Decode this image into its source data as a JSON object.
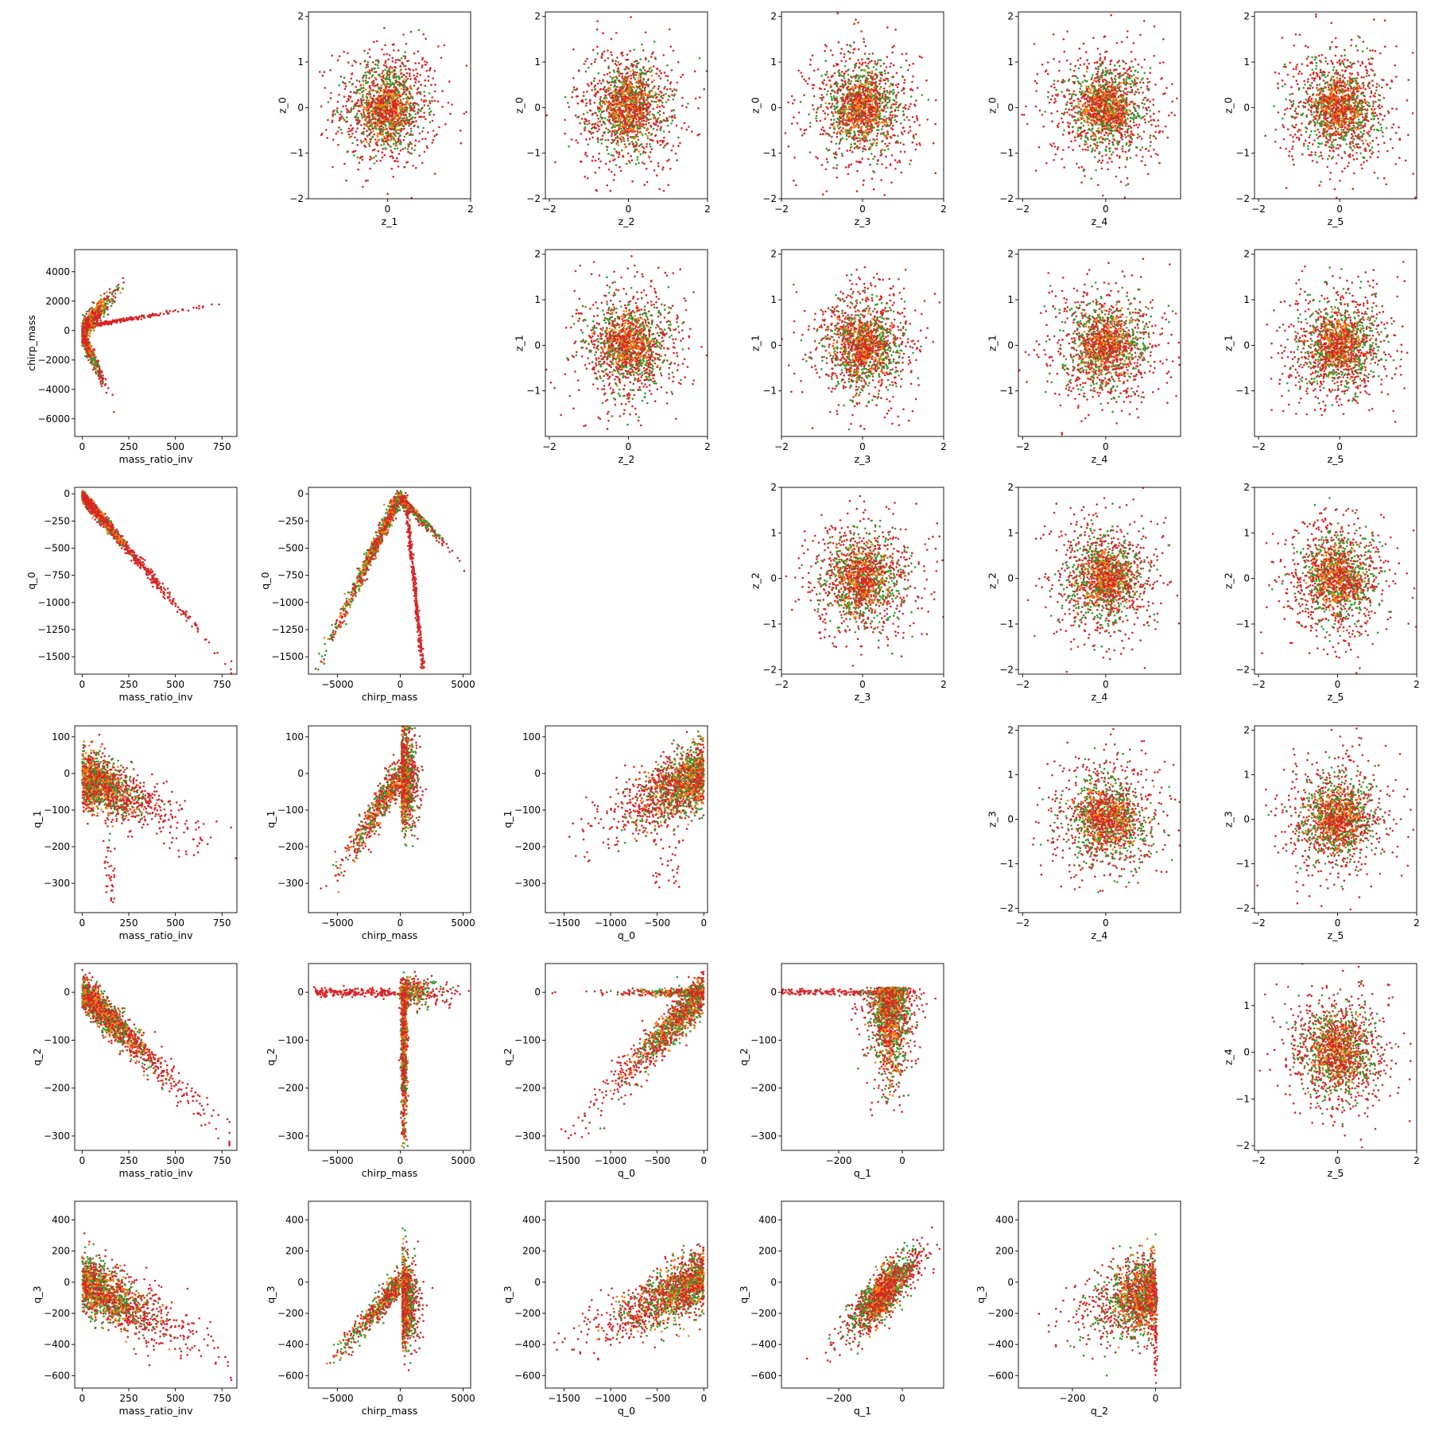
{
  "colors": {
    "green": "#2ca02c",
    "orange": "#ff7f0e",
    "red": "#d62728"
  },
  "chart_data": {
    "type": "scatter",
    "figure": "lower triangle: physical/intermediate variable scatter pairs; upper triangle: latent z_i vs z_j scatter pairs",
    "series": [
      {
        "name": "",
        "color": "#2ca02c"
      },
      {
        "name": "",
        "color": "#ff7f0e"
      },
      {
        "name": "",
        "color": "#d62728"
      }
    ],
    "panels": [
      {
        "row": 0,
        "col": 1,
        "xlabel": "z_1",
        "ylabel": "z_0",
        "xlim": [
          -1.9,
          2.0
        ],
        "ylim": [
          -2.0,
          2.1
        ],
        "xticks": [
          0,
          2
        ],
        "yticks": [
          -2,
          -1,
          0,
          1,
          2
        ],
        "shape": "blob",
        "cx": 0,
        "cy": 0,
        "sx": 0.55,
        "sy": 0.6
      },
      {
        "row": 0,
        "col": 2,
        "xlabel": "z_2",
        "ylabel": "z_0",
        "xlim": [
          -2.1,
          2.0
        ],
        "ylim": [
          -2.0,
          2.1
        ],
        "xticks": [
          -2,
          0,
          2
        ],
        "yticks": [
          -2,
          -1,
          0,
          1,
          2
        ],
        "shape": "blob",
        "cx": 0,
        "cy": 0,
        "sx": 0.6,
        "sy": 0.6
      },
      {
        "row": 0,
        "col": 3,
        "xlabel": "z_3",
        "ylabel": "z_0",
        "xlim": [
          -2.0,
          2.0
        ],
        "ylim": [
          -2.0,
          2.1
        ],
        "xticks": [
          -2,
          0,
          2
        ],
        "yticks": [
          -2,
          -1,
          0,
          1,
          2
        ],
        "shape": "blob",
        "cx": 0,
        "cy": 0,
        "sx": 0.6,
        "sy": 0.6
      },
      {
        "row": 0,
        "col": 4,
        "xlabel": "z_4",
        "ylabel": "z_0",
        "xlim": [
          -2.1,
          1.8
        ],
        "ylim": [
          -2.0,
          2.1
        ],
        "xticks": [
          -2,
          0
        ],
        "yticks": [
          -2,
          -1,
          0,
          1,
          2
        ],
        "shape": "blob",
        "cx": 0,
        "cy": 0,
        "sx": 0.6,
        "sy": 0.6
      },
      {
        "row": 0,
        "col": 5,
        "xlabel": "z_5",
        "ylabel": "z_0",
        "xlim": [
          -2.1,
          1.9
        ],
        "ylim": [
          -2.0,
          2.1
        ],
        "xticks": [
          -2,
          0
        ],
        "yticks": [
          -2,
          -1,
          0,
          1,
          2
        ],
        "shape": "blob",
        "cx": 0,
        "cy": 0,
        "sx": 0.6,
        "sy": 0.6
      },
      {
        "row": 1,
        "col": 0,
        "xlabel": "mass_ratio_inv",
        "ylabel": "chirp_mass",
        "xlim": [
          -40,
          830
        ],
        "ylim": [
          -7200,
          5500
        ],
        "xticks": [
          0,
          250,
          500,
          750
        ],
        "yticks": [
          -6000,
          -4000,
          -2000,
          0,
          2000,
          4000
        ],
        "shape": "mri_chirp"
      },
      {
        "row": 1,
        "col": 2,
        "xlabel": "z_2",
        "ylabel": "z_1",
        "xlim": [
          -2.1,
          2.0
        ],
        "ylim": [
          -2.0,
          2.1
        ],
        "xticks": [
          -2,
          0,
          2
        ],
        "yticks": [
          -1,
          0,
          1,
          2
        ],
        "shape": "blob",
        "cx": 0,
        "cy": 0,
        "sx": 0.6,
        "sy": 0.6
      },
      {
        "row": 1,
        "col": 3,
        "xlabel": "z_3",
        "ylabel": "z_1",
        "xlim": [
          -2.0,
          2.0
        ],
        "ylim": [
          -2.0,
          2.1
        ],
        "xticks": [
          -2,
          0,
          2
        ],
        "yticks": [
          -1,
          0,
          1,
          2
        ],
        "shape": "blob",
        "cx": 0,
        "cy": 0,
        "sx": 0.6,
        "sy": 0.6
      },
      {
        "row": 1,
        "col": 4,
        "xlabel": "z_4",
        "ylabel": "z_1",
        "xlim": [
          -2.1,
          1.8
        ],
        "ylim": [
          -2.0,
          2.1
        ],
        "xticks": [
          -2,
          0
        ],
        "yticks": [
          -1,
          0,
          1,
          2
        ],
        "shape": "blob",
        "cx": 0,
        "cy": 0,
        "sx": 0.6,
        "sy": 0.6
      },
      {
        "row": 1,
        "col": 5,
        "xlabel": "z_5",
        "ylabel": "z_1",
        "xlim": [
          -2.1,
          1.9
        ],
        "ylim": [
          -2.0,
          2.1
        ],
        "xticks": [
          -2,
          0
        ],
        "yticks": [
          -1,
          0,
          1,
          2
        ],
        "shape": "blob",
        "cx": 0,
        "cy": 0,
        "sx": 0.6,
        "sy": 0.6
      },
      {
        "row": 2,
        "col": 0,
        "xlabel": "mass_ratio_inv",
        "ylabel": "q_0",
        "xlim": [
          -40,
          830
        ],
        "ylim": [
          -1660,
          60
        ],
        "xticks": [
          0,
          250,
          500,
          750
        ],
        "yticks": [
          -1500,
          -1250,
          -1000,
          -750,
          -500,
          -250,
          0
        ],
        "shape": "mri_q0"
      },
      {
        "row": 2,
        "col": 1,
        "xlabel": "chirp_mass",
        "ylabel": "q_0",
        "xlim": [
          -7300,
          5600
        ],
        "ylim": [
          -1660,
          60
        ],
        "xticks": [
          -5000,
          0,
          5000
        ],
        "yticks": [
          -1500,
          -1250,
          -1000,
          -750,
          -500,
          -250,
          0
        ],
        "shape": "chirp_q0"
      },
      {
        "row": 2,
        "col": 3,
        "xlabel": "z_3",
        "ylabel": "z_2",
        "xlim": [
          -2.0,
          2.0
        ],
        "ylim": [
          -2.1,
          2.0
        ],
        "xticks": [
          -2,
          0,
          2
        ],
        "yticks": [
          -2,
          -1,
          0,
          1,
          2
        ],
        "shape": "blob",
        "cx": 0,
        "cy": 0,
        "sx": 0.6,
        "sy": 0.6
      },
      {
        "row": 2,
        "col": 4,
        "xlabel": "z_4",
        "ylabel": "z_2",
        "xlim": [
          -2.1,
          1.8
        ],
        "ylim": [
          -2.1,
          2.0
        ],
        "xticks": [
          -2,
          0
        ],
        "yticks": [
          -2,
          -1,
          0,
          1,
          2
        ],
        "shape": "blob",
        "cx": 0,
        "cy": 0,
        "sx": 0.6,
        "sy": 0.6
      },
      {
        "row": 2,
        "col": 5,
        "xlabel": "z_5",
        "ylabel": "z_2",
        "xlim": [
          -2.1,
          2.0
        ],
        "ylim": [
          -2.1,
          2.0
        ],
        "xticks": [
          -2,
          0,
          2
        ],
        "yticks": [
          -2,
          -1,
          0,
          1,
          2
        ],
        "shape": "blob",
        "cx": 0,
        "cy": 0,
        "sx": 0.6,
        "sy": 0.6
      },
      {
        "row": 3,
        "col": 0,
        "xlabel": "mass_ratio_inv",
        "ylabel": "q_1",
        "xlim": [
          -40,
          830
        ],
        "ylim": [
          -380,
          130
        ],
        "xticks": [
          0,
          250,
          500,
          750
        ],
        "yticks": [
          -300,
          -200,
          -100,
          0,
          100
        ],
        "shape": "mri_q1"
      },
      {
        "row": 3,
        "col": 1,
        "xlabel": "chirp_mass",
        "ylabel": "q_1",
        "xlim": [
          -7300,
          5600
        ],
        "ylim": [
          -380,
          130
        ],
        "xticks": [
          -5000,
          0,
          5000
        ],
        "yticks": [
          -300,
          -200,
          -100,
          0,
          100
        ],
        "shape": "chirp_q1"
      },
      {
        "row": 3,
        "col": 2,
        "xlabel": "q_0",
        "ylabel": "q_1",
        "xlim": [
          -1700,
          40
        ],
        "ylim": [
          -380,
          130
        ],
        "xticks": [
          -1500,
          -1000,
          -500,
          0
        ],
        "yticks": [
          -300,
          -200,
          -100,
          0,
          100
        ],
        "shape": "q0_q1"
      },
      {
        "row": 3,
        "col": 4,
        "xlabel": "z_4",
        "ylabel": "z_3",
        "xlim": [
          -2.1,
          1.8
        ],
        "ylim": [
          -2.1,
          2.1
        ],
        "xticks": [
          -2,
          0
        ],
        "yticks": [
          -2,
          -1,
          0,
          1,
          2
        ],
        "shape": "blob",
        "cx": 0,
        "cy": 0,
        "sx": 0.6,
        "sy": 0.6
      },
      {
        "row": 3,
        "col": 5,
        "xlabel": "z_5",
        "ylabel": "z_3",
        "xlim": [
          -2.1,
          2.0
        ],
        "ylim": [
          -2.1,
          2.1
        ],
        "xticks": [
          -2,
          0,
          2
        ],
        "yticks": [
          -2,
          -1,
          0,
          1,
          2
        ],
        "shape": "blob",
        "cx": 0,
        "cy": 0,
        "sx": 0.6,
        "sy": 0.6
      },
      {
        "row": 4,
        "col": 0,
        "xlabel": "mass_ratio_inv",
        "ylabel": "q_2",
        "xlim": [
          -40,
          830
        ],
        "ylim": [
          -330,
          60
        ],
        "xticks": [
          0,
          250,
          500,
          750
        ],
        "yticks": [
          -300,
          -200,
          -100,
          0
        ],
        "shape": "mri_q2"
      },
      {
        "row": 4,
        "col": 1,
        "xlabel": "chirp_mass",
        "ylabel": "q_2",
        "xlim": [
          -7300,
          5600
        ],
        "ylim": [
          -330,
          60
        ],
        "xticks": [
          -5000,
          0,
          5000
        ],
        "yticks": [
          -300,
          -200,
          -100,
          0
        ],
        "shape": "chirp_q2"
      },
      {
        "row": 4,
        "col": 2,
        "xlabel": "q_0",
        "ylabel": "q_2",
        "xlim": [
          -1700,
          40
        ],
        "ylim": [
          -330,
          60
        ],
        "xticks": [
          -1500,
          -1000,
          -500,
          0
        ],
        "yticks": [
          -300,
          -200,
          -100,
          0
        ],
        "shape": "q0_q2"
      },
      {
        "row": 4,
        "col": 3,
        "xlabel": "q_1",
        "ylabel": "q_2",
        "xlim": [
          -380,
          130
        ],
        "ylim": [
          -330,
          60
        ],
        "xticks": [
          -200,
          0
        ],
        "yticks": [
          -300,
          -200,
          -100,
          0
        ],
        "shape": "q1_q2"
      },
      {
        "row": 4,
        "col": 5,
        "xlabel": "z_5",
        "ylabel": "z_4",
        "xlim": [
          -2.1,
          2.0
        ],
        "ylim": [
          -2.1,
          1.9
        ],
        "xticks": [
          -2,
          0,
          2
        ],
        "yticks": [
          -2,
          -1,
          0,
          1
        ],
        "shape": "blob",
        "cx": 0,
        "cy": 0,
        "sx": 0.6,
        "sy": 0.6
      },
      {
        "row": 5,
        "col": 0,
        "xlabel": "mass_ratio_inv",
        "ylabel": "q_3",
        "xlim": [
          -40,
          830
        ],
        "ylim": [
          -680,
          520
        ],
        "xticks": [
          0,
          250,
          500,
          750
        ],
        "yticks": [
          -600,
          -400,
          -200,
          0,
          200,
          400
        ],
        "shape": "mri_q3"
      },
      {
        "row": 5,
        "col": 1,
        "xlabel": "chirp_mass",
        "ylabel": "q_3",
        "xlim": [
          -7300,
          5600
        ],
        "ylim": [
          -680,
          520
        ],
        "xticks": [
          -5000,
          0,
          5000
        ],
        "yticks": [
          -600,
          -400,
          -200,
          0,
          200,
          400
        ],
        "shape": "chirp_q3"
      },
      {
        "row": 5,
        "col": 2,
        "xlabel": "q_0",
        "ylabel": "q_3",
        "xlim": [
          -1700,
          40
        ],
        "ylim": [
          -680,
          520
        ],
        "xticks": [
          -1500,
          -1000,
          -500,
          0
        ],
        "yticks": [
          -600,
          -400,
          -200,
          0,
          200,
          400
        ],
        "shape": "q0_q3"
      },
      {
        "row": 5,
        "col": 3,
        "xlabel": "q_1",
        "ylabel": "q_3",
        "xlim": [
          -380,
          130
        ],
        "ylim": [
          -680,
          520
        ],
        "xticks": [
          -200,
          0
        ],
        "yticks": [
          -600,
          -400,
          -200,
          0,
          200,
          400
        ],
        "shape": "q1_q3"
      },
      {
        "row": 5,
        "col": 4,
        "xlabel": "q_2",
        "ylabel": "q_3",
        "xlim": [
          -330,
          60
        ],
        "ylim": [
          -680,
          520
        ],
        "xticks": [
          -200,
          0
        ],
        "yticks": [
          -600,
          -400,
          -200,
          0,
          200,
          400
        ],
        "shape": "q2_q3"
      }
    ]
  }
}
